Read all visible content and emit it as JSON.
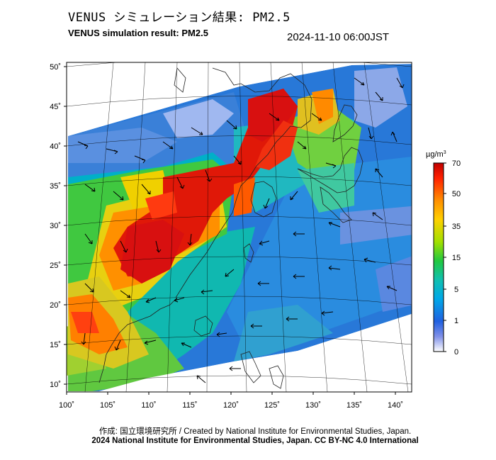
{
  "header": {
    "title_ja": "VENUS シミュレーション結果: PM2.5",
    "title_en": "VENUS simulation result: PM2.5",
    "timestamp": "2024-11-10 06:00JST"
  },
  "map": {
    "lat_ticks": [
      "50˚",
      "45˚",
      "40˚",
      "35˚",
      "30˚",
      "25˚",
      "20˚",
      "15˚",
      "10˚"
    ],
    "lon_ticks": [
      "100˚",
      "105˚",
      "110˚",
      "115˚",
      "120˚",
      "125˚",
      "130˚",
      "135˚",
      "140˚"
    ],
    "field": "PM2.5 concentration with wind vectors",
    "projection": "lambert-conformal",
    "extent": {
      "lon": [
        100,
        140
      ],
      "lat": [
        9,
        51
      ]
    }
  },
  "legend": {
    "unit_html": "µg/m³",
    "unit": "µg/m",
    "unit_sup": "3",
    "levels": [
      "70",
      "50",
      "35",
      "15",
      "5",
      "1",
      "0"
    ],
    "colors": [
      "#d00000",
      "#ff5000",
      "#ffd000",
      "#80e000",
      "#10c060",
      "#00a0e0",
      "#3060e0",
      "#b0c8f0",
      "#ffffff"
    ]
  },
  "footer": {
    "credit_ja": "作成: 国立環境研究所 / Created by National Institute for Environmental Studies, Japan.",
    "license": "2024 National Institute for Environmental Studies, Japan. CC BY-NC 4.0 International"
  }
}
